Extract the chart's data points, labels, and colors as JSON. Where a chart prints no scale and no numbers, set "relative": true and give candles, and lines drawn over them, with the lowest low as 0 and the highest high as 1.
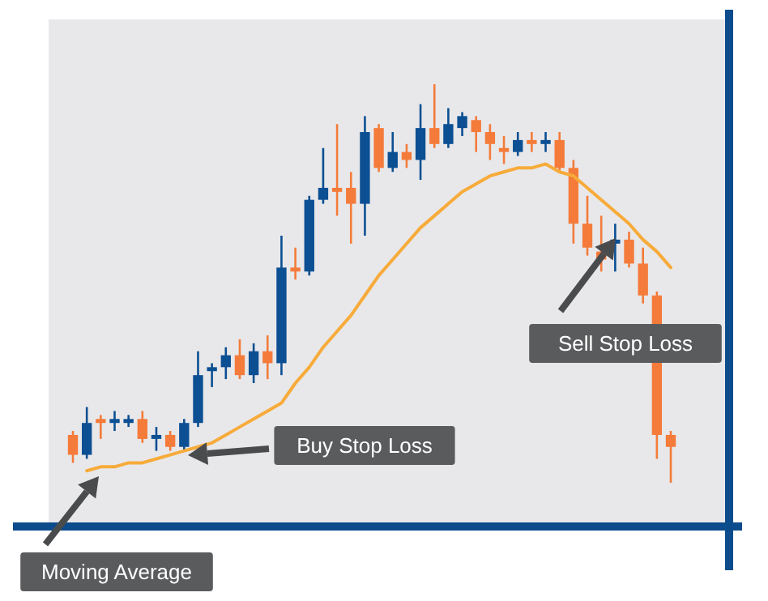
{
  "chart_data": {
    "type": "candlestick",
    "relative": true,
    "categories": [
      null,
      null,
      null,
      null,
      null,
      null,
      null,
      null,
      null,
      null,
      null,
      null,
      null,
      null,
      null,
      null,
      null,
      null,
      null,
      null,
      null,
      null,
      null,
      null,
      null,
      null,
      null,
      null,
      null,
      null,
      null,
      null,
      null,
      null,
      null,
      null,
      null,
      null,
      null,
      null,
      null,
      null,
      null,
      null
    ],
    "series": [
      {
        "ohlc": [
          [
            0.12,
            0.13,
            0.05,
            0.07
          ],
          [
            0.07,
            0.19,
            0.06,
            0.15
          ],
          [
            0.16,
            0.17,
            0.11,
            0.15
          ],
          [
            0.15,
            0.18,
            0.13,
            0.16
          ],
          [
            0.15,
            0.17,
            0.14,
            0.16
          ],
          [
            0.16,
            0.18,
            0.1,
            0.11
          ],
          [
            0.11,
            0.14,
            0.08,
            0.12
          ],
          [
            0.12,
            0.13,
            0.08,
            0.09
          ],
          [
            0.09,
            0.16,
            0.08,
            0.15
          ],
          [
            0.15,
            0.33,
            0.14,
            0.27
          ],
          [
            0.28,
            0.3,
            0.24,
            0.29
          ],
          [
            0.29,
            0.34,
            0.26,
            0.32
          ],
          [
            0.32,
            0.36,
            0.26,
            0.27
          ],
          [
            0.27,
            0.35,
            0.25,
            0.33
          ],
          [
            0.33,
            0.37,
            0.26,
            0.3
          ],
          [
            0.3,
            0.62,
            0.27,
            0.54
          ],
          [
            0.54,
            0.59,
            0.51,
            0.53
          ],
          [
            0.53,
            0.72,
            0.52,
            0.71
          ],
          [
            0.71,
            0.84,
            0.7,
            0.74
          ],
          [
            0.74,
            0.9,
            0.67,
            0.73
          ],
          [
            0.74,
            0.78,
            0.6,
            0.7
          ],
          [
            0.7,
            0.92,
            0.62,
            0.88
          ],
          [
            0.89,
            0.9,
            0.78,
            0.79
          ],
          [
            0.79,
            0.88,
            0.78,
            0.83
          ],
          [
            0.83,
            0.85,
            0.79,
            0.81
          ],
          [
            0.81,
            0.95,
            0.76,
            0.89
          ],
          [
            0.89,
            1.0,
            0.84,
            0.85
          ],
          [
            0.85,
            0.94,
            0.84,
            0.9
          ],
          [
            0.89,
            0.93,
            0.87,
            0.92
          ],
          [
            0.91,
            0.92,
            0.83,
            0.88
          ],
          [
            0.88,
            0.9,
            0.81,
            0.85
          ],
          [
            0.84,
            0.87,
            0.8,
            0.83
          ],
          [
            0.83,
            0.88,
            0.82,
            0.86
          ],
          [
            0.86,
            0.88,
            0.83,
            0.85
          ],
          [
            0.85,
            0.88,
            0.83,
            0.86
          ],
          [
            0.86,
            0.88,
            0.78,
            0.79
          ],
          [
            0.79,
            0.81,
            0.6,
            0.65
          ],
          [
            0.65,
            0.72,
            0.57,
            0.59
          ],
          [
            0.58,
            0.67,
            0.53,
            0.56
          ],
          [
            0.6,
            0.65,
            0.53,
            0.61
          ],
          [
            0.61,
            0.63,
            0.54,
            0.55
          ],
          [
            0.55,
            0.59,
            0.45,
            0.47
          ],
          [
            0.47,
            0.48,
            0.06,
            0.12
          ],
          [
            0.12,
            0.13,
            0.0,
            0.09
          ]
        ],
        "colors": [
          "#f47b3a",
          "#0c4f93",
          "#f47b3a",
          "#0c4f93",
          "#0c4f93",
          "#f47b3a",
          "#0c4f93",
          "#f47b3a",
          "#0c4f93",
          "#0c4f93",
          "#0c4f93",
          "#0c4f93",
          "#f47b3a",
          "#0c4f93",
          "#f47b3a",
          "#0c4f93",
          "#f47b3a",
          "#0c4f93",
          "#0c4f93",
          "#f47b3a",
          "#f47b3a",
          "#0c4f93",
          "#f47b3a",
          "#0c4f93",
          "#f47b3a",
          "#0c4f93",
          "#f47b3a",
          "#0c4f93",
          "#0c4f93",
          "#f47b3a",
          "#f47b3a",
          "#f47b3a",
          "#0c4f93",
          "#f47b3a",
          "#0c4f93",
          "#f47b3a",
          "#f47b3a",
          "#f47b3a",
          "#f47b3a",
          "#0c4f93",
          "#f47b3a",
          "#f47b3a",
          "#f47b3a",
          "#f47b3a"
        ]
      },
      {
        "type": "line",
        "color": "#f7ab3a",
        "values": [
          null,
          0.03,
          0.04,
          0.04,
          0.05,
          0.05,
          0.06,
          0.07,
          0.08,
          0.09,
          0.1,
          0.12,
          0.14,
          0.16,
          0.18,
          0.2,
          0.25,
          0.29,
          0.34,
          0.38,
          0.42,
          0.47,
          0.52,
          0.56,
          0.6,
          0.64,
          0.67,
          0.7,
          0.73,
          0.75,
          0.77,
          0.78,
          0.79,
          0.79,
          0.8,
          0.78,
          0.77,
          0.74,
          0.71,
          0.68,
          0.65,
          0.61,
          0.58,
          0.54
        ]
      }
    ],
    "annotations": [
      "Buy Stop Loss",
      "Sell Stop Loss",
      "Moving Average"
    ]
  }
}
